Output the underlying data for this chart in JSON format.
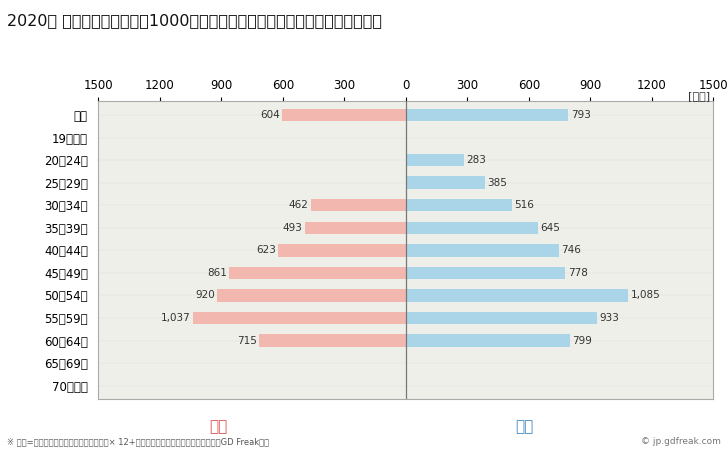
{
  "title": "2020年 民間企業（従業者数1000人以上）フルタイム労働者の男女別平均年収",
  "unit_label": "[万円]",
  "categories": [
    "全体",
    "19歳以下",
    "20〜24歳",
    "25〜29歳",
    "30〜34歳",
    "35〜39歳",
    "40〜44歳",
    "45〜49歳",
    "50〜54歳",
    "55〜59歳",
    "60〜64歳",
    "65〜69歳",
    "70歳以上"
  ],
  "female_values": [
    604,
    0,
    0,
    0,
    462,
    493,
    623,
    861,
    920,
    1037,
    715,
    0,
    0
  ],
  "male_values": [
    793,
    0,
    283,
    385,
    516,
    645,
    746,
    778,
    1085,
    933,
    799,
    0,
    0
  ],
  "female_color": "#f2b8b0",
  "male_color": "#aad4e8",
  "female_label": "女性",
  "male_label": "男性",
  "female_text_color": "#e05050",
  "male_text_color": "#4488bb",
  "xlim": 1500,
  "bg_color": "#ffffff",
  "plot_bg_color": "#efefea",
  "footnote": "※ 年収=「きまって支給する現金給与額」× 12+「年間賞与その他特別給与額」としてGD Freak推計",
  "watermark": "© jp.gdfreak.com",
  "title_fontsize": 11.5,
  "axis_fontsize": 8.5,
  "label_fontsize": 7.5,
  "bar_height": 0.55
}
